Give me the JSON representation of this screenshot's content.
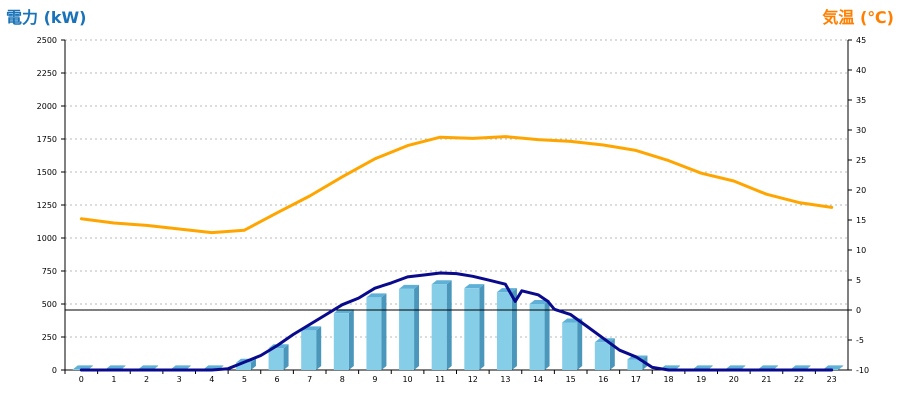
{
  "chart_data": {
    "type": "bar",
    "title": "",
    "left_axis": {
      "label": "電力 (kW)",
      "min": 0,
      "max": 2500,
      "ticks": [
        0,
        250,
        500,
        750,
        1000,
        1250,
        1500,
        1750,
        2000,
        2250,
        2500
      ],
      "color": "#1a73b8"
    },
    "right_axis": {
      "label": "気温 (℃)",
      "min": -10,
      "max": 45,
      "ticks": [
        -10,
        -5,
        0,
        5,
        10,
        15,
        20,
        25,
        30,
        35,
        40,
        45
      ],
      "color": "#ff7f00"
    },
    "categories": [
      "0",
      "1",
      "2",
      "3",
      "4",
      "5",
      "6",
      "7",
      "8",
      "9",
      "10",
      "11",
      "12",
      "13",
      "14",
      "15",
      "16",
      "17",
      "18",
      "19",
      "20",
      "21",
      "22",
      "23"
    ],
    "grid": true,
    "series": [
      {
        "kind": "bar",
        "axis": "left",
        "color": "#86cde8",
        "values": [
          5,
          5,
          5,
          5,
          5,
          55,
          165,
          300,
          430,
          550,
          615,
          650,
          620,
          590,
          500,
          360,
          210,
          80,
          5,
          5,
          5,
          5,
          5,
          5
        ]
      },
      {
        "kind": "line",
        "axis": "left",
        "color": "#0a0a8c",
        "x": [
          0,
          1,
          2,
          3,
          4,
          4.5,
          5,
          5.5,
          6,
          6.5,
          7,
          7.5,
          8,
          8.5,
          9,
          9.5,
          10,
          10.5,
          11,
          11.5,
          12,
          12.5,
          13,
          13.3,
          13.5,
          14,
          14.3,
          14.5,
          15,
          15.5,
          16,
          16.5,
          17,
          17.5,
          18,
          19,
          20,
          21,
          22,
          23
        ],
        "values": [
          0,
          0,
          0,
          0,
          0,
          10,
          60,
          110,
          185,
          270,
          345,
          420,
          495,
          545,
          620,
          660,
          705,
          720,
          735,
          730,
          710,
          680,
          650,
          520,
          600,
          570,
          520,
          460,
          420,
          330,
          240,
          150,
          100,
          20,
          0,
          0,
          0,
          0,
          0,
          0
        ]
      },
      {
        "kind": "line",
        "axis": "right",
        "color": "#ffa500",
        "x": [
          0,
          1,
          2,
          3,
          4,
          5,
          6,
          7,
          8,
          9,
          10,
          11,
          12,
          13,
          14,
          15,
          16,
          17,
          18,
          19,
          20,
          21,
          22,
          23
        ],
        "values": [
          15.2,
          14.5,
          14.1,
          13.5,
          12.9,
          13.3,
          16.2,
          19.0,
          22.2,
          25.2,
          27.4,
          28.8,
          28.6,
          28.9,
          28.4,
          28.1,
          27.5,
          26.6,
          24.9,
          22.8,
          21.5,
          19.3,
          17.9,
          17.1
        ]
      }
    ],
    "reference_lines": [
      {
        "axis": "right",
        "value": 0,
        "color": "#000000"
      }
    ]
  }
}
